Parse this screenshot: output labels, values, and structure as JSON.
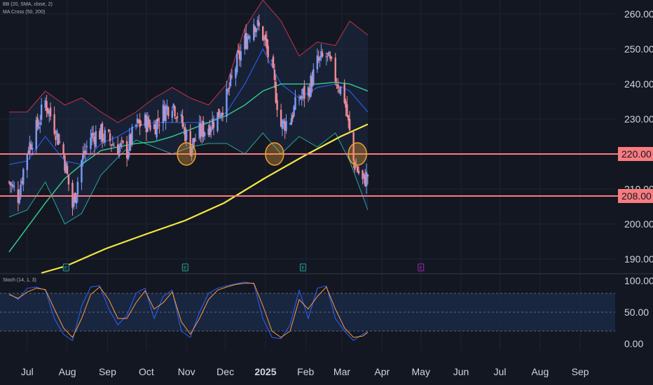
{
  "indicators": {
    "bb": "BB (20, SMA, close, 2)",
    "ma": "MA Cross (50, 200)",
    "stoch": "Stoch (14, 1, 3)"
  },
  "colors": {
    "background": "#131722",
    "grid": "#1f2433",
    "axis_text": "#d1d4dc",
    "up_candle": "#7b9cf5",
    "down_candle": "#f28b94",
    "sma50": "#33c28a",
    "sma200": "#f5e642",
    "bb_upper": "#c0334a",
    "bb_lower": "#26a69a",
    "bb_basis": "#2962ff",
    "level_line": "#f77c80",
    "highlight_circle": "#f0a030",
    "stoch_k": "#2962ff",
    "stoch_d": "#ff9a3c",
    "stoch_band": "#1c2a48"
  },
  "chart_data": [
    {
      "type": "candlestick",
      "x_ticks": [
        "Jul",
        "Aug",
        "Sep",
        "Oct",
        "Nov",
        "Dec",
        "2025",
        "Feb",
        "Mar",
        "Apr",
        "May",
        "Jun",
        "Jul",
        "Aug",
        "Sep"
      ],
      "x_tick_bold": [
        "2025"
      ],
      "y_ticks": [
        190,
        200,
        210,
        230,
        240,
        250,
        260
      ],
      "ylim": [
        186,
        264
      ],
      "price_levels": [
        {
          "value": 220,
          "label": "220.00"
        },
        {
          "value": 208,
          "label": "208.00"
        }
      ],
      "highlight_dates": [
        "2024-11-01",
        "2025-01-08",
        "2025-03-13"
      ],
      "event_markers": [
        {
          "date": "2024-07-31",
          "label": "E",
          "color": "#26a69a"
        },
        {
          "date": "2024-10-31",
          "label": "E",
          "color": "#26a69a"
        },
        {
          "date": "2025-01-30",
          "label": "E",
          "color": "#26a69a"
        },
        {
          "date": "2025-05-01",
          "label": "E",
          "color": "#9c27b0"
        }
      ],
      "series": [
        {
          "name": "BB upper",
          "points": [
            [
              "2024-06-17",
              232
            ],
            [
              "2024-07-01",
              232
            ],
            [
              "2024-07-15",
              238
            ],
            [
              "2024-07-30",
              234
            ],
            [
              "2024-08-12",
              236
            ],
            [
              "2024-08-27",
              232
            ],
            [
              "2024-09-09",
              229
            ],
            [
              "2024-09-23",
              232
            ],
            [
              "2024-10-07",
              236
            ],
            [
              "2024-10-21",
              239
            ],
            [
              "2024-11-04",
              236
            ],
            [
              "2024-11-18",
              234
            ],
            [
              "2024-12-02",
              240
            ],
            [
              "2024-12-16",
              256
            ],
            [
              "2024-12-30",
              264
            ],
            [
              "2025-01-13",
              258
            ],
            [
              "2025-01-27",
              248
            ],
            [
              "2025-02-10",
              252
            ],
            [
              "2025-02-24",
              251
            ],
            [
              "2025-03-07",
              258
            ],
            [
              "2025-03-21",
              254
            ]
          ]
        },
        {
          "name": "BB lower",
          "points": [
            [
              "2024-06-17",
              202
            ],
            [
              "2024-07-01",
              204
            ],
            [
              "2024-07-15",
              212
            ],
            [
              "2024-07-30",
              200
            ],
            [
              "2024-08-12",
              203
            ],
            [
              "2024-08-27",
              214
            ],
            [
              "2024-09-09",
              219
            ],
            [
              "2024-09-23",
              224
            ],
            [
              "2024-10-07",
              222
            ],
            [
              "2024-10-21",
              220
            ],
            [
              "2024-11-04",
              222
            ],
            [
              "2024-11-18",
              223
            ],
            [
              "2024-12-02",
              223
            ],
            [
              "2024-12-16",
              220
            ],
            [
              "2024-12-30",
              226
            ],
            [
              "2025-01-13",
              220
            ],
            [
              "2025-01-27",
              225
            ],
            [
              "2025-02-10",
              222
            ],
            [
              "2025-02-24",
              226
            ],
            [
              "2025-03-07",
              218
            ],
            [
              "2025-03-21",
              204
            ]
          ]
        },
        {
          "name": "BB basis",
          "points": [
            [
              "2024-06-17",
              217
            ],
            [
              "2024-07-01",
              218
            ],
            [
              "2024-07-15",
              225
            ],
            [
              "2024-07-30",
              218
            ],
            [
              "2024-08-12",
              217
            ],
            [
              "2024-08-27",
              223
            ],
            [
              "2024-09-09",
              225
            ],
            [
              "2024-09-23",
              228
            ],
            [
              "2024-10-07",
              229
            ],
            [
              "2024-10-21",
              229
            ],
            [
              "2024-11-04",
              229
            ],
            [
              "2024-11-18",
              229
            ],
            [
              "2024-12-02",
              232
            ],
            [
              "2024-12-16",
              240
            ],
            [
              "2024-12-30",
              250
            ],
            [
              "2025-01-13",
              240
            ],
            [
              "2025-01-27",
              236
            ],
            [
              "2025-02-10",
              239
            ],
            [
              "2025-02-24",
              240
            ],
            [
              "2025-03-07",
              238
            ],
            [
              "2025-03-21",
              232
            ]
          ]
        },
        {
          "name": "SMA 50",
          "points": [
            [
              "2024-06-17",
              192
            ],
            [
              "2024-07-01",
              199
            ],
            [
              "2024-07-15",
              206
            ],
            [
              "2024-07-30",
              213
            ],
            [
              "2024-08-12",
              217
            ],
            [
              "2024-08-27",
              221
            ],
            [
              "2024-09-09",
              222
            ],
            [
              "2024-09-23",
              223
            ],
            [
              "2024-10-07",
              223.5
            ],
            [
              "2024-10-21",
              225
            ],
            [
              "2024-11-04",
              227
            ],
            [
              "2024-11-18",
              229
            ],
            [
              "2024-12-02",
              231
            ],
            [
              "2024-12-16",
              234
            ],
            [
              "2024-12-30",
              238
            ],
            [
              "2025-01-13",
              240
            ],
            [
              "2025-01-27",
              240
            ],
            [
              "2025-02-10",
              240
            ],
            [
              "2025-02-24",
              240.5
            ],
            [
              "2025-03-07",
              240
            ],
            [
              "2025-03-21",
              238
            ]
          ]
        },
        {
          "name": "SMA 200",
          "points": [
            [
              "2024-07-12",
              186
            ],
            [
              "2024-07-31",
              188
            ],
            [
              "2024-08-31",
              193
            ],
            [
              "2024-09-30",
              197
            ],
            [
              "2024-10-31",
              201
            ],
            [
              "2024-11-30",
              206
            ],
            [
              "2024-12-31",
              213
            ],
            [
              "2025-01-31",
              219.5
            ],
            [
              "2025-02-28",
              225
            ],
            [
              "2025-03-21",
              228.5
            ]
          ]
        },
        {
          "name": "Close",
          "points": [
            [
              "2024-06-17",
              212
            ],
            [
              "2024-06-24",
              208
            ],
            [
              "2024-07-01",
              221
            ],
            [
              "2024-07-08",
              227
            ],
            [
              "2024-07-15",
              235
            ],
            [
              "2024-07-22",
              228
            ],
            [
              "2024-07-29",
              220
            ],
            [
              "2024-08-05",
              205
            ],
            [
              "2024-08-12",
              218
            ],
            [
              "2024-08-19",
              225
            ],
            [
              "2024-08-26",
              226
            ],
            [
              "2024-09-02",
              224
            ],
            [
              "2024-09-09",
              222
            ],
            [
              "2024-09-16",
              221
            ],
            [
              "2024-09-23",
              228
            ],
            [
              "2024-09-30",
              229
            ],
            [
              "2024-10-07",
              228
            ],
            [
              "2024-10-14",
              232
            ],
            [
              "2024-10-21",
              235
            ],
            [
              "2024-10-28",
              229
            ],
            [
              "2024-11-04",
              222
            ],
            [
              "2024-11-11",
              226
            ],
            [
              "2024-11-18",
              228
            ],
            [
              "2024-11-25",
              231
            ],
            [
              "2024-12-02",
              236
            ],
            [
              "2024-12-09",
              245
            ],
            [
              "2024-12-16",
              252
            ],
            [
              "2024-12-23",
              258
            ],
            [
              "2024-12-30",
              254
            ],
            [
              "2025-01-06",
              244
            ],
            [
              "2025-01-13",
              228
            ],
            [
              "2025-01-20",
              230
            ],
            [
              "2025-01-27",
              236
            ],
            [
              "2025-02-03",
              238
            ],
            [
              "2025-02-10",
              246
            ],
            [
              "2025-02-17",
              248
            ],
            [
              "2025-02-24",
              242
            ],
            [
              "2025-03-03",
              236
            ],
            [
              "2025-03-10",
              218
            ],
            [
              "2025-03-17",
              212
            ],
            [
              "2025-03-21",
              214
            ]
          ]
        }
      ]
    },
    {
      "type": "line",
      "title": "Stoch (14, 1, 3)",
      "y_ticks": [
        0,
        50,
        100
      ],
      "y_tick_labels": [
        "0.00",
        "50.00",
        "100.00"
      ],
      "ylim": [
        -10,
        110
      ],
      "band": [
        20,
        80
      ],
      "series": [
        {
          "name": "%K",
          "points": [
            [
              "2024-06-17",
              80
            ],
            [
              "2024-06-24",
              70
            ],
            [
              "2024-07-01",
              88
            ],
            [
              "2024-07-08",
              90
            ],
            [
              "2024-07-15",
              85
            ],
            [
              "2024-07-22",
              40
            ],
            [
              "2024-07-29",
              15
            ],
            [
              "2024-08-05",
              5
            ],
            [
              "2024-08-12",
              60
            ],
            [
              "2024-08-19",
              90
            ],
            [
              "2024-08-26",
              92
            ],
            [
              "2024-09-02",
              55
            ],
            [
              "2024-09-09",
              30
            ],
            [
              "2024-09-16",
              45
            ],
            [
              "2024-09-23",
              80
            ],
            [
              "2024-09-30",
              88
            ],
            [
              "2024-10-07",
              40
            ],
            [
              "2024-10-14",
              75
            ],
            [
              "2024-10-21",
              85
            ],
            [
              "2024-10-28",
              20
            ],
            [
              "2024-11-04",
              10
            ],
            [
              "2024-11-11",
              50
            ],
            [
              "2024-11-18",
              80
            ],
            [
              "2024-11-25",
              88
            ],
            [
              "2024-12-02",
              92
            ],
            [
              "2024-12-09",
              95
            ],
            [
              "2024-12-16",
              98
            ],
            [
              "2024-12-23",
              95
            ],
            [
              "2024-12-30",
              40
            ],
            [
              "2025-01-06",
              10
            ],
            [
              "2025-01-13",
              8
            ],
            [
              "2025-01-20",
              30
            ],
            [
              "2025-01-27",
              85
            ],
            [
              "2025-02-03",
              40
            ],
            [
              "2025-02-10",
              88
            ],
            [
              "2025-02-17",
              92
            ],
            [
              "2025-02-24",
              40
            ],
            [
              "2025-03-03",
              20
            ],
            [
              "2025-03-10",
              5
            ],
            [
              "2025-03-17",
              15
            ],
            [
              "2025-03-21",
              20
            ]
          ]
        },
        {
          "name": "%D",
          "points": [
            [
              "2024-06-17",
              78
            ],
            [
              "2024-06-24",
              72
            ],
            [
              "2024-07-01",
              82
            ],
            [
              "2024-07-08",
              88
            ],
            [
              "2024-07-15",
              86
            ],
            [
              "2024-07-22",
              55
            ],
            [
              "2024-07-29",
              25
            ],
            [
              "2024-08-05",
              10
            ],
            [
              "2024-08-12",
              40
            ],
            [
              "2024-08-19",
              78
            ],
            [
              "2024-08-26",
              90
            ],
            [
              "2024-09-02",
              70
            ],
            [
              "2024-09-09",
              40
            ],
            [
              "2024-09-16",
              40
            ],
            [
              "2024-09-23",
              65
            ],
            [
              "2024-09-30",
              84
            ],
            [
              "2024-10-07",
              55
            ],
            [
              "2024-10-14",
              65
            ],
            [
              "2024-10-21",
              82
            ],
            [
              "2024-10-28",
              35
            ],
            [
              "2024-11-04",
              15
            ],
            [
              "2024-11-11",
              40
            ],
            [
              "2024-11-18",
              70
            ],
            [
              "2024-11-25",
              85
            ],
            [
              "2024-12-02",
              90
            ],
            [
              "2024-12-09",
              94
            ],
            [
              "2024-12-16",
              96
            ],
            [
              "2024-12-23",
              96
            ],
            [
              "2024-12-30",
              60
            ],
            [
              "2025-01-06",
              20
            ],
            [
              "2025-01-13",
              10
            ],
            [
              "2025-01-20",
              20
            ],
            [
              "2025-01-27",
              70
            ],
            [
              "2025-02-03",
              55
            ],
            [
              "2025-02-10",
              75
            ],
            [
              "2025-02-17",
              90
            ],
            [
              "2025-02-24",
              55
            ],
            [
              "2025-03-03",
              25
            ],
            [
              "2025-03-10",
              10
            ],
            [
              "2025-03-17",
              12
            ],
            [
              "2025-03-21",
              18
            ]
          ]
        }
      ]
    }
  ]
}
